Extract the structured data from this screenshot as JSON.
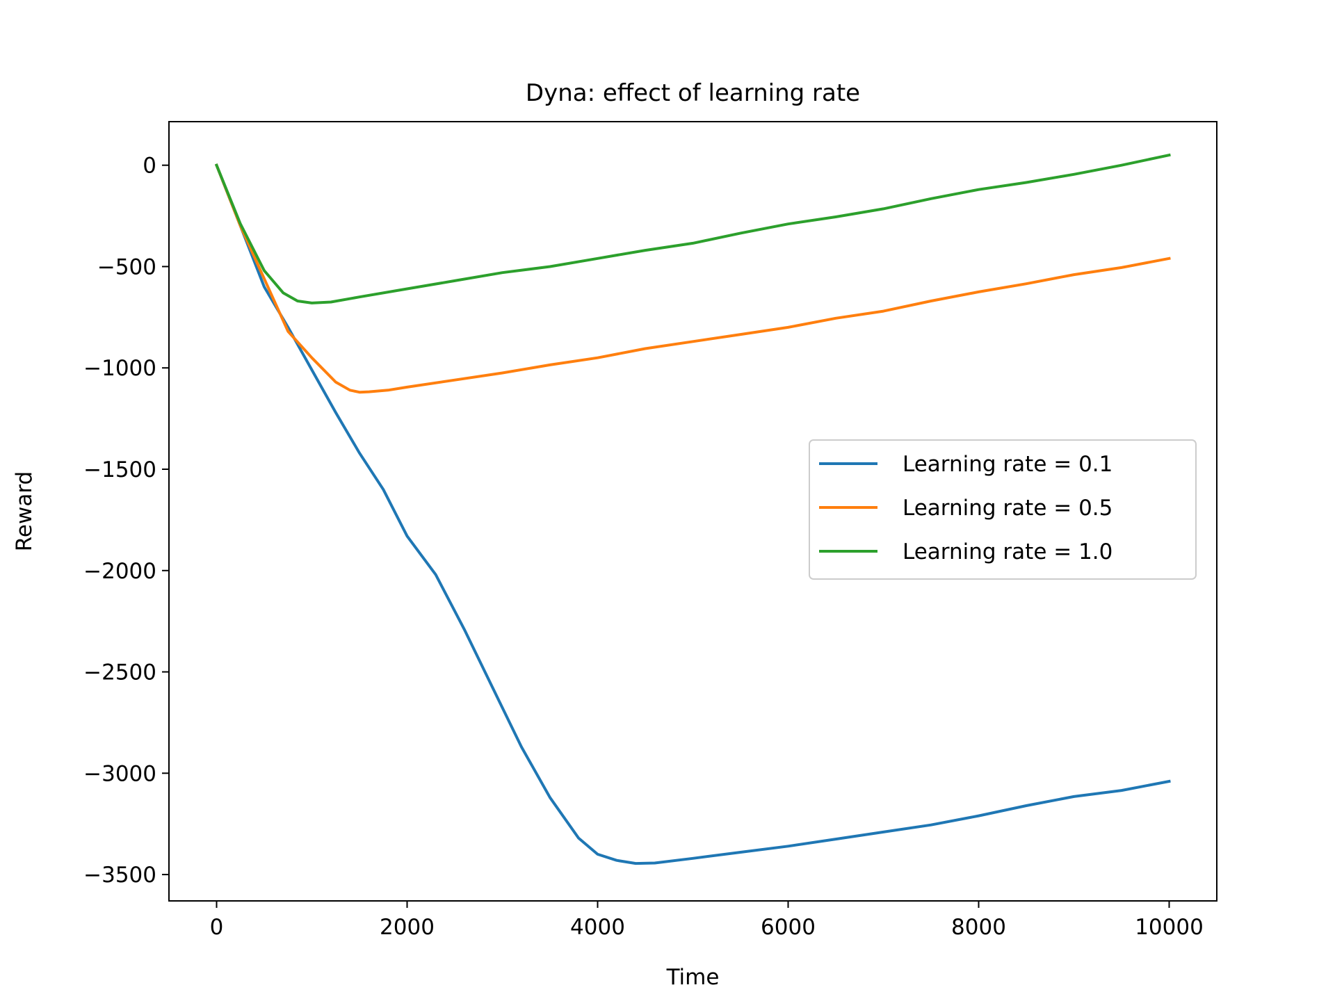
{
  "chart_data": {
    "type": "line",
    "title": "Dyna: effect of learning rate",
    "xlabel": "Time",
    "ylabel": "Reward",
    "xlim": [
      -500,
      10500
    ],
    "ylim": [
      -3630,
      215
    ],
    "xticks": [
      0,
      2000,
      4000,
      6000,
      8000,
      10000
    ],
    "xtick_labels": [
      "0",
      "2000",
      "4000",
      "6000",
      "8000",
      "10000"
    ],
    "yticks": [
      0,
      -500,
      -1000,
      -1500,
      -2000,
      -2500,
      -3000,
      -3500
    ],
    "ytick_labels": [
      "0",
      "−500",
      "−1000",
      "−1500",
      "−2000",
      "−2500",
      "−3000",
      "−3500"
    ],
    "grid": false,
    "legend_position": "center-right",
    "series": [
      {
        "name": "Learning rate = 0.1",
        "color": "#1f77b4",
        "x": [
          0,
          250,
          500,
          750,
          1000,
          1250,
          1500,
          1750,
          2000,
          2300,
          2600,
          2900,
          3200,
          3500,
          3800,
          4000,
          4200,
          4400,
          4600,
          5000,
          5500,
          6000,
          6500,
          7000,
          7500,
          8000,
          8500,
          9000,
          9500,
          10000
        ],
        "y": [
          0,
          -300,
          -600,
          -800,
          -1010,
          -1220,
          -1420,
          -1600,
          -1830,
          -2020,
          -2290,
          -2580,
          -2870,
          -3120,
          -3320,
          -3400,
          -3430,
          -3445,
          -3443,
          -3420,
          -3390,
          -3360,
          -3325,
          -3290,
          -3255,
          -3210,
          -3160,
          -3115,
          -3085,
          -3040
        ]
      },
      {
        "name": "Learning rate = 0.5",
        "color": "#ff7f0e",
        "x": [
          0,
          250,
          500,
          750,
          1000,
          1250,
          1400,
          1500,
          1600,
          1800,
          2000,
          2500,
          3000,
          3500,
          4000,
          4500,
          5000,
          5500,
          6000,
          6500,
          7000,
          7500,
          8000,
          8500,
          9000,
          9500,
          10000
        ],
        "y": [
          0,
          -300,
          -560,
          -820,
          -950,
          -1070,
          -1110,
          -1120,
          -1118,
          -1110,
          -1095,
          -1060,
          -1025,
          -985,
          -950,
          -905,
          -870,
          -835,
          -800,
          -755,
          -720,
          -670,
          -625,
          -585,
          -540,
          -505,
          -460
        ]
      },
      {
        "name": "Learning rate = 1.0",
        "color": "#2ca02c",
        "x": [
          0,
          250,
          500,
          700,
          850,
          1000,
          1200,
          1500,
          2000,
          2500,
          3000,
          3500,
          4000,
          4500,
          5000,
          5500,
          6000,
          6500,
          7000,
          7500,
          8000,
          8500,
          9000,
          9500,
          10000
        ],
        "y": [
          0,
          -290,
          -520,
          -630,
          -670,
          -680,
          -675,
          -650,
          -610,
          -570,
          -530,
          -500,
          -460,
          -420,
          -385,
          -335,
          -290,
          -255,
          -215,
          -165,
          -120,
          -85,
          -45,
          0,
          50
        ]
      }
    ]
  }
}
